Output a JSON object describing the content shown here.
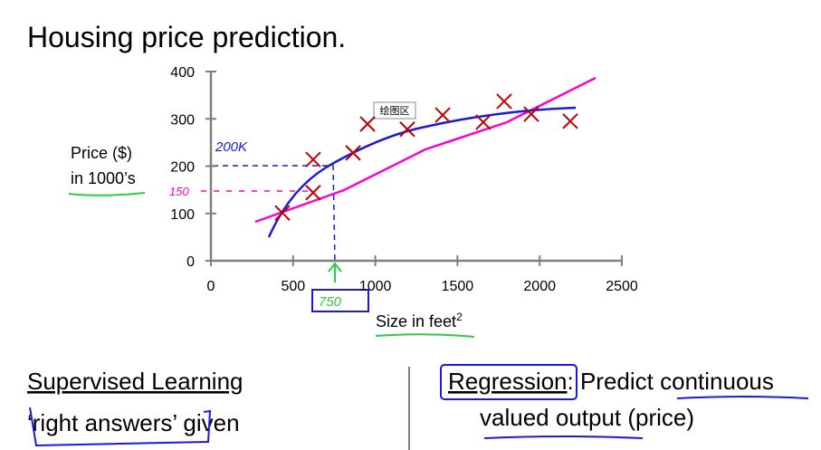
{
  "slide_title": "Housing price prediction.",
  "chart_data": {
    "type": "scatter",
    "ylabel_lines": [
      "Price ($)",
      "in 1000’s"
    ],
    "xlabel": "Size in feet",
    "xlabel_sup": "2",
    "x": [
      435,
      622,
      622,
      865,
      953,
      1195,
      1410,
      1657,
      1784,
      1949,
      2186
    ],
    "values": [
      101,
      214,
      144,
      228,
      289,
      278,
      308,
      293,
      337,
      310,
      295
    ],
    "color": "#c00000",
    "xlim": [
      0,
      2500
    ],
    "xticks": [
      0,
      500,
      1000,
      1500,
      2000,
      2500
    ],
    "ylim": [
      0,
      400
    ],
    "yticks": [
      0,
      100,
      200,
      300,
      400
    ],
    "grid": false,
    "annotations": [
      "200K",
      "150",
      "750"
    ],
    "tooltip": "绘图区"
  },
  "left_panel": {
    "heading": "Supervised Learning",
    "line": "‘right answers’ given"
  },
  "right_panel": {
    "keyword": "Regression",
    "rest": ": Predict ",
    "underlined": "continuous",
    "line2_underlined": "valued output",
    "line2_rest": " (price)"
  }
}
